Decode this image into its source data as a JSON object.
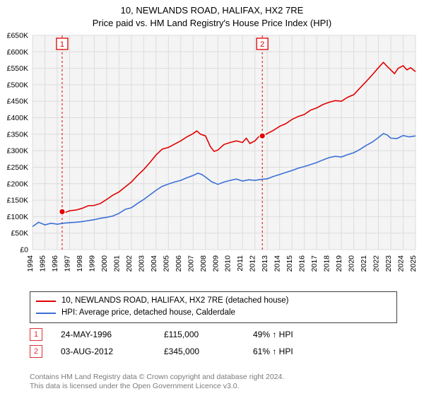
{
  "title_line1": "10, NEWLANDS ROAD, HALIFAX, HX2 7RE",
  "title_line2": "Price paid vs. HM Land Registry's House Price Index (HPI)",
  "chart": {
    "type": "line",
    "background_color": "#f4f4f4",
    "grid_color": "#dcdcdc",
    "xlim": [
      1994,
      2025
    ],
    "ylim": [
      0,
      650
    ],
    "ytick_step": 50,
    "ytick_prefix": "£",
    "ytick_suffix": "K",
    "xtick_step": 1,
    "series": [
      {
        "name": "10, NEWLANDS ROAD, HALIFAX, HX2 7RE (detached house)",
        "color": "#e00000",
        "width": 1.6,
        "data": [
          [
            1996.4,
            115
          ],
          [
            1996.6,
            112
          ],
          [
            1997.0,
            118
          ],
          [
            1997.5,
            120
          ],
          [
            1998.0,
            125
          ],
          [
            1998.5,
            133
          ],
          [
            1999.0,
            134
          ],
          [
            1999.5,
            140
          ],
          [
            2000.0,
            152
          ],
          [
            2000.5,
            165
          ],
          [
            2001.0,
            175
          ],
          [
            2001.5,
            190
          ],
          [
            2002.0,
            205
          ],
          [
            2002.5,
            225
          ],
          [
            2003.0,
            243
          ],
          [
            2003.5,
            264
          ],
          [
            2004.0,
            287
          ],
          [
            2004.5,
            305
          ],
          [
            2005.0,
            310
          ],
          [
            2005.5,
            320
          ],
          [
            2006.0,
            330
          ],
          [
            2006.5,
            342
          ],
          [
            2007.0,
            352
          ],
          [
            2007.3,
            360
          ],
          [
            2007.6,
            350
          ],
          [
            2008.0,
            345
          ],
          [
            2008.4,
            312
          ],
          [
            2008.7,
            298
          ],
          [
            2009.0,
            302
          ],
          [
            2009.5,
            319
          ],
          [
            2010.0,
            325
          ],
          [
            2010.5,
            330
          ],
          [
            2011.0,
            325
          ],
          [
            2011.3,
            338
          ],
          [
            2011.6,
            322
          ],
          [
            2012.0,
            330
          ],
          [
            2012.4,
            346
          ],
          [
            2012.6,
            345
          ],
          [
            2013.0,
            352
          ],
          [
            2013.5,
            362
          ],
          [
            2014.0,
            374
          ],
          [
            2014.5,
            382
          ],
          [
            2015.0,
            395
          ],
          [
            2015.5,
            404
          ],
          [
            2016.0,
            410
          ],
          [
            2016.5,
            423
          ],
          [
            2017.0,
            430
          ],
          [
            2017.5,
            440
          ],
          [
            2018.0,
            447
          ],
          [
            2018.5,
            452
          ],
          [
            2019.0,
            450
          ],
          [
            2019.5,
            462
          ],
          [
            2020.0,
            470
          ],
          [
            2020.5,
            490
          ],
          [
            2021.0,
            510
          ],
          [
            2021.5,
            530
          ],
          [
            2022.0,
            552
          ],
          [
            2022.4,
            568
          ],
          [
            2022.7,
            556
          ],
          [
            2023.0,
            545
          ],
          [
            2023.3,
            534
          ],
          [
            2023.6,
            550
          ],
          [
            2024.0,
            558
          ],
          [
            2024.3,
            545
          ],
          [
            2024.6,
            552
          ],
          [
            2025.0,
            540
          ]
        ]
      },
      {
        "name": "HPI: Average price, detached house, Calderdale",
        "color": "#3b6fd6",
        "width": 1.6,
        "data": [
          [
            1994.0,
            70
          ],
          [
            1994.5,
            83
          ],
          [
            1995.0,
            75
          ],
          [
            1995.5,
            80
          ],
          [
            1996.0,
            77
          ],
          [
            1996.5,
            80
          ],
          [
            1997.0,
            82
          ],
          [
            1997.5,
            83
          ],
          [
            1998.0,
            85
          ],
          [
            1998.5,
            88
          ],
          [
            1999.0,
            91
          ],
          [
            1999.5,
            95
          ],
          [
            2000.0,
            98
          ],
          [
            2000.5,
            102
          ],
          [
            2001.0,
            110
          ],
          [
            2001.5,
            122
          ],
          [
            2002.0,
            127
          ],
          [
            2002.5,
            140
          ],
          [
            2003.0,
            152
          ],
          [
            2003.5,
            166
          ],
          [
            2004.0,
            180
          ],
          [
            2004.5,
            192
          ],
          [
            2005.0,
            199
          ],
          [
            2005.5,
            205
          ],
          [
            2006.0,
            210
          ],
          [
            2006.5,
            218
          ],
          [
            2007.0,
            225
          ],
          [
            2007.4,
            232
          ],
          [
            2007.7,
            228
          ],
          [
            2008.0,
            220
          ],
          [
            2008.5,
            206
          ],
          [
            2009.0,
            198
          ],
          [
            2009.5,
            205
          ],
          [
            2010.0,
            210
          ],
          [
            2010.5,
            214
          ],
          [
            2011.0,
            208
          ],
          [
            2011.5,
            212
          ],
          [
            2012.0,
            210
          ],
          [
            2012.5,
            213
          ],
          [
            2013.0,
            215
          ],
          [
            2013.5,
            222
          ],
          [
            2014.0,
            228
          ],
          [
            2014.5,
            234
          ],
          [
            2015.0,
            240
          ],
          [
            2015.5,
            247
          ],
          [
            2016.0,
            252
          ],
          [
            2016.5,
            258
          ],
          [
            2017.0,
            264
          ],
          [
            2017.5,
            272
          ],
          [
            2018.0,
            279
          ],
          [
            2018.5,
            283
          ],
          [
            2019.0,
            281
          ],
          [
            2019.5,
            288
          ],
          [
            2020.0,
            294
          ],
          [
            2020.5,
            304
          ],
          [
            2021.0,
            316
          ],
          [
            2021.5,
            326
          ],
          [
            2022.0,
            340
          ],
          [
            2022.4,
            352
          ],
          [
            2022.7,
            348
          ],
          [
            2023.0,
            338
          ],
          [
            2023.5,
            337
          ],
          [
            2024.0,
            346
          ],
          [
            2024.5,
            342
          ],
          [
            2025.0,
            345
          ]
        ]
      }
    ],
    "markers": [
      {
        "n": "1",
        "x": 1996.4,
        "y": 115,
        "color": "#e00000"
      },
      {
        "n": "2",
        "x": 2012.6,
        "y": 345,
        "color": "#e00000"
      }
    ],
    "marker_dashed_color": "#e00000"
  },
  "legend": {
    "items": [
      {
        "color": "#e00000",
        "label": "10, NEWLANDS ROAD, HALIFAX, HX2 7RE (detached house)"
      },
      {
        "color": "#3b6fd6",
        "label": "HPI: Average price, detached house, Calderdale"
      }
    ]
  },
  "sales": [
    {
      "n": "1",
      "date": "24-MAY-1996",
      "price": "£115,000",
      "hpi": "49% ↑ HPI"
    },
    {
      "n": "2",
      "date": "03-AUG-2012",
      "price": "£345,000",
      "hpi": "61% ↑ HPI"
    }
  ],
  "footer_line1": "Contains HM Land Registry data © Crown copyright and database right 2024.",
  "footer_line2": "This data is licensed under the Open Government Licence v3.0."
}
